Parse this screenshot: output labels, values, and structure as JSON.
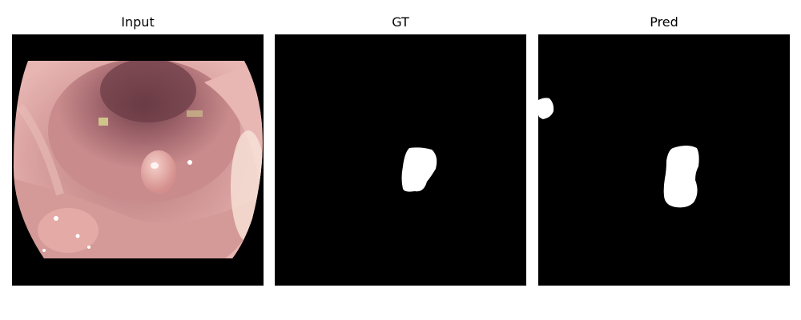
{
  "panels": [
    {
      "title": "Input"
    },
    {
      "title": "GT"
    },
    {
      "title": "Pred"
    }
  ],
  "colors": {
    "background": "#ffffff",
    "mask_background": "#000000",
    "mask_foreground": "#ffffff",
    "tissue_base": "#c98b8c",
    "tissue_dark": "#7a4a52"
  }
}
